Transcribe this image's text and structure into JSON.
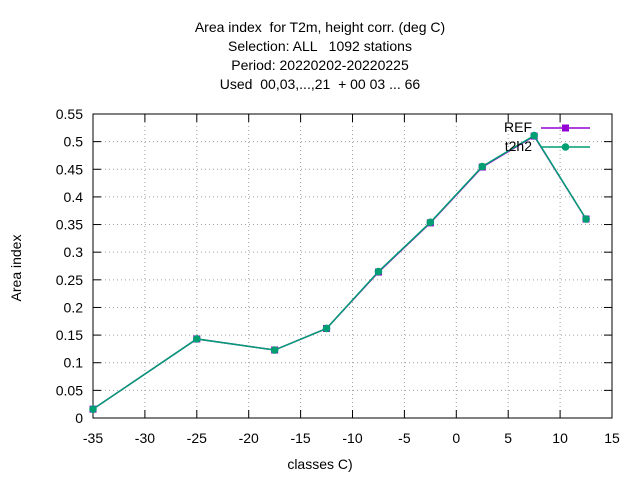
{
  "chart_data": {
    "type": "line",
    "title_lines": [
      "Area index  for T2m, height corr. (deg C)",
      "Selection: ALL   1092 stations",
      "Period: 20220202-20220225",
      "Used  00,03,...,21  + 00 03 ... 66"
    ],
    "xlabel": "classes C)",
    "ylabel": "Area index",
    "xlim": [
      -35,
      15
    ],
    "ylim": [
      0,
      0.55
    ],
    "x_ticks": [
      "-35",
      "-30",
      "-25",
      "-20",
      "-15",
      "-10",
      "-5",
      "0",
      "5",
      "10",
      "15"
    ],
    "y_ticks": [
      "0",
      "0.05",
      "0.1",
      "0.15",
      "0.2",
      "0.25",
      "0.3",
      "0.35",
      "0.4",
      "0.45",
      "0.5",
      "0.55"
    ],
    "grid": true,
    "legend_position": "top-right",
    "series": [
      {
        "name": "REF",
        "color": "#9400d3",
        "marker": "filled-square",
        "x": [
          -35,
          -25,
          -17.5,
          -12.5,
          -7.5,
          -2.5,
          2.5,
          7.5,
          12.5
        ],
        "y": [
          0.016,
          0.143,
          0.123,
          0.162,
          0.264,
          0.353,
          0.454,
          0.51,
          0.36
        ]
      },
      {
        "name": "t2h2",
        "color": "#009e73",
        "marker": "filled-circle",
        "x": [
          -35,
          -25,
          -17.5,
          -12.5,
          -7.5,
          -2.5,
          2.5,
          7.5,
          12.5
        ],
        "y": [
          0.016,
          0.143,
          0.123,
          0.162,
          0.265,
          0.354,
          0.455,
          0.511,
          0.36
        ]
      }
    ]
  }
}
